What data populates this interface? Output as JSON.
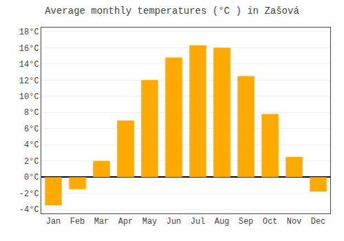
{
  "chart_data": {
    "type": "bar",
    "title": "Average monthly temperatures (°C ) in Zašová",
    "categories": [
      "Jan",
      "Feb",
      "Mar",
      "Apr",
      "May",
      "Jun",
      "Jul",
      "Aug",
      "Sep",
      "Oct",
      "Nov",
      "Dec"
    ],
    "values": [
      -3.5,
      -1.5,
      2.0,
      7.0,
      12.0,
      14.8,
      16.3,
      16.0,
      12.5,
      7.8,
      2.5,
      -1.8
    ],
    "color": "#FFAA00",
    "ylim": [
      -4.5,
      18.5
    ],
    "yticks": [
      {
        "value": -4,
        "label": "-4°C"
      },
      {
        "value": -2,
        "label": "-2°C"
      },
      {
        "value": 0,
        "label": "0°C"
      },
      {
        "value": 2,
        "label": "2°C"
      },
      {
        "value": 4,
        "label": "4°C"
      },
      {
        "value": 6,
        "label": "6°C"
      },
      {
        "value": 8,
        "label": "8°C"
      },
      {
        "value": 10,
        "label": "10°C"
      },
      {
        "value": 12,
        "label": "12°C"
      },
      {
        "value": 14,
        "label": "14°C"
      },
      {
        "value": 16,
        "label": "16°C"
      },
      {
        "value": 18,
        "label": "18°C"
      }
    ],
    "grid": true
  }
}
